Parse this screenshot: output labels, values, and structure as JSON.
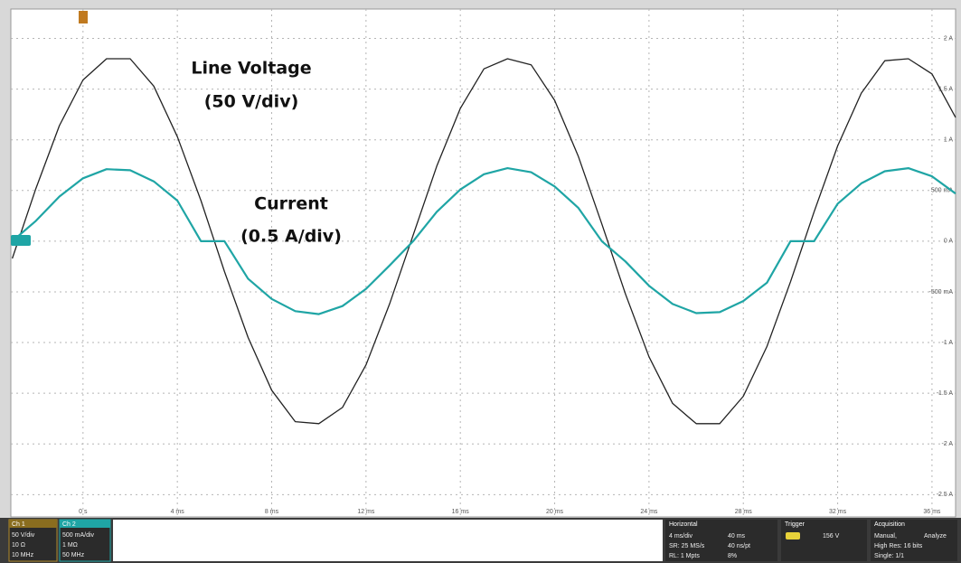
{
  "chart_data": {
    "type": "line",
    "annotations": [
      "Line Voltage",
      "(50 V/div)",
      "Current",
      "(0.5 A/div)"
    ],
    "x": [
      -3,
      -2,
      -1,
      0,
      1,
      2,
      3,
      4,
      5,
      6,
      7,
      8,
      9,
      10,
      11,
      12,
      13,
      14,
      15,
      16,
      17,
      18,
      19,
      20,
      21,
      22,
      23,
      24,
      25,
      26,
      27,
      28,
      29,
      30,
      31,
      32,
      33,
      34,
      35,
      36,
      37
    ],
    "series": [
      {
        "name": "Line Voltage",
        "color": "#222222",
        "axis": "y2",
        "values": [
          -17,
          52,
          114,
          159,
          180,
          180,
          153,
          103,
          40,
          -30,
          -95,
          -147,
          -178,
          -180,
          -164,
          -122,
          -62,
          6,
          74,
          131,
          170,
          180,
          174,
          139,
          84,
          17,
          -52,
          -114,
          -160,
          -180,
          -180,
          -153,
          -104,
          -40,
          29,
          94,
          146,
          178,
          180,
          165,
          122
        ]
      },
      {
        "name": "Current",
        "color": "#1fa5a5",
        "values": [
          0,
          0.2,
          0.44,
          0.62,
          0.71,
          0.7,
          0.59,
          0.4,
          0,
          0,
          -0.37,
          -0.57,
          -0.69,
          -0.72,
          -0.64,
          -0.47,
          -0.24,
          0,
          0.29,
          0.51,
          0.66,
          0.72,
          0.68,
          0.54,
          0.33,
          0,
          -0.2,
          -0.44,
          -0.62,
          -0.71,
          -0.7,
          -0.59,
          -0.41,
          0,
          0,
          0.37,
          0.57,
          0.69,
          0.72,
          0.64,
          0.47
        ]
      }
    ],
    "xlim": [
      -3.06,
      37.0
    ],
    "xticks": [
      {
        "value": 0,
        "label": "0 s"
      },
      {
        "value": 4,
        "label": "4 ms"
      },
      {
        "value": 8,
        "label": "8 ms"
      },
      {
        "value": 12,
        "label": "12 ms"
      },
      {
        "value": 16,
        "label": "16 ms"
      },
      {
        "value": 20,
        "label": "20 ms"
      },
      {
        "value": 24,
        "label": "24 ms"
      },
      {
        "value": 28,
        "label": "28 ms"
      },
      {
        "value": 32,
        "label": "32 ms"
      },
      {
        "value": 36,
        "label": "36 ms"
      }
    ],
    "ylim": [
      -2.72,
      2.29
    ],
    "yticks": [
      {
        "value": 2,
        "label": "2 A"
      },
      {
        "value": 1.5,
        "label": "1.5 A"
      },
      {
        "value": 1,
        "label": "1 A"
      },
      {
        "value": 0.5,
        "label": "500 mA"
      },
      {
        "value": 0,
        "label": "0 A"
      },
      {
        "value": -0.5,
        "label": "-500 mA"
      },
      {
        "value": -1,
        "label": "-1 A"
      },
      {
        "value": -1.5,
        "label": "-1.5 A"
      },
      {
        "value": -2,
        "label": "-2 A"
      },
      {
        "value": -2.5,
        "label": "-2.5 A"
      }
    ],
    "y2lim": [
      -272,
      229
    ],
    "grid": true
  },
  "status": {
    "ch1": {
      "title": "Ch 1",
      "lines": [
        "50 V/div",
        "10 Ω",
        "10 MHz"
      ]
    },
    "ch2": {
      "title": "Ch 2",
      "lines": [
        "500 mA/div",
        "1 MΩ",
        "50 MHz"
      ]
    },
    "horizontal": {
      "title": "Horizontal",
      "lines": [
        "4 ms/div",
        "40 ms",
        "SR: 25 MS/s",
        "40 ns/pt",
        "RL: 1 Mpts",
        "8%"
      ]
    },
    "trigger": {
      "title": "Trigger",
      "level": "156 V"
    },
    "acquisition": {
      "title": "Acquisition",
      "lines": [
        "Manual,",
        "Analyze",
        "High Res: 16 bits",
        "Single: 1/1"
      ]
    }
  }
}
